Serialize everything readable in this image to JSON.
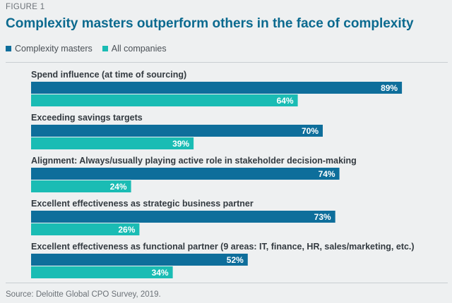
{
  "figure_label": "FIGURE 1",
  "title": "Complexity masters outperform others in the face of complexity",
  "source": "Source: Deloitte Global CPO Survey, 2019.",
  "colors": {
    "complexity_masters": "#0e6e9b",
    "all_companies": "#1abcb4",
    "category_text": "#333a40",
    "background": "#eef0f1"
  },
  "chart_data": {
    "type": "bar",
    "orientation": "horizontal",
    "categories": [
      "Spend influence (at time of sourcing)",
      "Exceeding savings targets",
      "Alignment: Always/usually playing active role in stakeholder decision-making",
      "Excellent effectiveness as strategic business partner",
      "Excellent effectiveness as functional partner (9 areas: IT, finance, HR, sales/marketing, etc.)"
    ],
    "series": [
      {
        "name": "Complexity masters",
        "values": [
          89,
          70,
          74,
          73,
          52
        ]
      },
      {
        "name": "All companies",
        "values": [
          64,
          39,
          24,
          26,
          34
        ]
      }
    ],
    "unit": "%",
    "xlim": [
      0,
      100
    ],
    "legend_position": "top-left",
    "grid": false
  }
}
